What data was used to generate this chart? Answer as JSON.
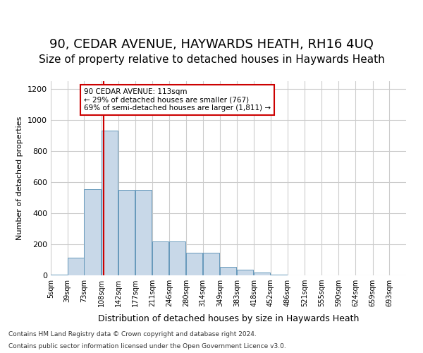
{
  "title": "90, CEDAR AVENUE, HAYWARDS HEATH, RH16 4UQ",
  "subtitle": "Size of property relative to detached houses in Haywards Heath",
  "xlabel": "Distribution of detached houses by size in Haywards Heath",
  "ylabel": "Number of detached properties",
  "footer_line1": "Contains HM Land Registry data © Crown copyright and database right 2024.",
  "footer_line2": "Contains public sector information licensed under the Open Government Licence v3.0.",
  "bins": [
    5,
    39,
    73,
    108,
    142,
    177,
    211,
    246,
    280,
    314,
    349,
    383,
    418,
    452,
    486,
    521,
    555,
    590,
    624,
    659,
    693
  ],
  "bar_labels": [
    "5sqm",
    "39sqm",
    "73sqm",
    "108sqm",
    "142sqm",
    "177sqm",
    "211sqm",
    "246sqm",
    "280sqm",
    "314sqm",
    "349sqm",
    "383sqm",
    "418sqm",
    "452sqm",
    "486sqm",
    "521sqm",
    "555sqm",
    "590sqm",
    "624sqm",
    "659sqm",
    "693sqm"
  ],
  "values": [
    5,
    115,
    555,
    930,
    550,
    550,
    220,
    220,
    145,
    145,
    55,
    35,
    20,
    5,
    2,
    1,
    1,
    0,
    0,
    0
  ],
  "bar_color": "#c8d8e8",
  "bar_edge_color": "#6699bb",
  "vline_x": 113,
  "vline_color": "#cc0000",
  "ylim": [
    0,
    1250
  ],
  "yticks": [
    0,
    200,
    400,
    600,
    800,
    1000,
    1200
  ],
  "annotation_text": "90 CEDAR AVENUE: 113sqm\n← 29% of detached houses are smaller (767)\n69% of semi-detached houses are larger (1,811) →",
  "annotation_box_color": "#ffffff",
  "annotation_border_color": "#cc0000",
  "title_fontsize": 13,
  "subtitle_fontsize": 11,
  "background_color": "#ffffff",
  "grid_color": "#cccccc"
}
